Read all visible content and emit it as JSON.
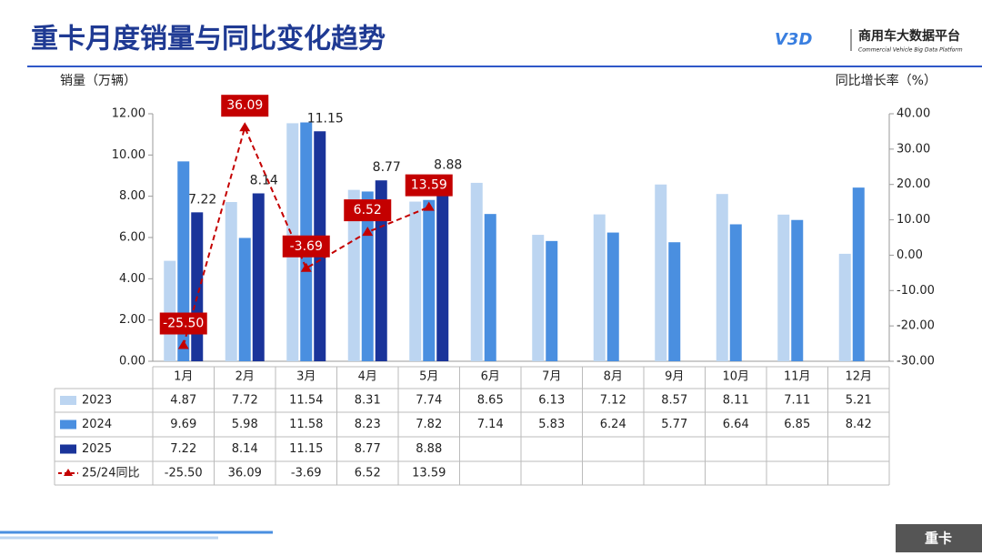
{
  "header": {
    "logo_mark": "V3D",
    "logo_text": "商用车大数据平台",
    "logo_subtext": "Commercial Vehicle Big Data Platform"
  },
  "footer": {
    "tag": "重卡"
  },
  "chart_data": {
    "type": "bar",
    "title": "重卡月度销量与同比变化趋势",
    "y_label": "销量（万辆）",
    "y2_label": "同比增长率（%）",
    "categories": [
      "1月",
      "2月",
      "3月",
      "4月",
      "5月",
      "6月",
      "7月",
      "8月",
      "9月",
      "10月",
      "11月",
      "12月"
    ],
    "series": [
      {
        "name": "2023",
        "color": "#bcd5f1",
        "values": [
          4.87,
          7.72,
          11.54,
          8.31,
          7.74,
          8.65,
          6.13,
          7.12,
          8.57,
          8.11,
          7.11,
          5.21
        ]
      },
      {
        "name": "2024",
        "color": "#4a8fe0",
        "values": [
          9.69,
          5.98,
          11.58,
          8.23,
          7.82,
          7.14,
          5.83,
          6.24,
          5.77,
          6.64,
          6.85,
          8.42
        ]
      },
      {
        "name": "2025",
        "color": "#1a349a",
        "show_labels": true,
        "values": [
          7.22,
          8.14,
          11.15,
          8.77,
          8.88,
          null,
          null,
          null,
          null,
          null,
          null,
          null
        ]
      },
      {
        "name": "25/24同比",
        "color": "#c40000",
        "type": "line",
        "axis": "y2",
        "show_labels": true,
        "values": [
          -25.5,
          36.09,
          -3.69,
          6.52,
          13.59,
          null,
          null,
          null,
          null,
          null,
          null,
          null
        ],
        "value_labels": [
          "-25.50",
          "36.09",
          "-3.69",
          "6.52",
          "13.59",
          null,
          null,
          null,
          null,
          null,
          null,
          null
        ]
      }
    ],
    "ylim": [
      0,
      12
    ],
    "yticks": [
      {
        "value": 0,
        "label": "0.00"
      },
      {
        "value": 2,
        "label": "2.00"
      },
      {
        "value": 4,
        "label": "4.00"
      },
      {
        "value": 6,
        "label": "6.00"
      },
      {
        "value": 8,
        "label": "8.00"
      },
      {
        "value": 10,
        "label": "10.00"
      },
      {
        "value": 12,
        "label": "12.00"
      }
    ],
    "y2lim": [
      -30,
      40
    ],
    "y2ticks": [
      {
        "value": -30,
        "label": "-30.00"
      },
      {
        "value": -20,
        "label": "-20.00"
      },
      {
        "value": -10,
        "label": "-10.00"
      },
      {
        "value": 0,
        "label": "0.00"
      },
      {
        "value": 10,
        "label": "10.00"
      },
      {
        "value": 20,
        "label": "20.00"
      },
      {
        "value": 30,
        "label": "30.00"
      },
      {
        "value": 40,
        "label": "40.00"
      }
    ],
    "grid": false
  }
}
